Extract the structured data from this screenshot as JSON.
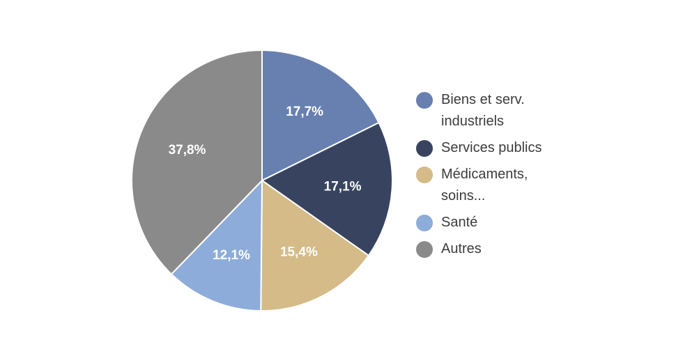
{
  "chart_data": {
    "type": "pie",
    "slices": [
      {
        "label": "Biens et serv. industriels",
        "value": 17.7,
        "display": "17,7%",
        "color": "#6880b0"
      },
      {
        "label": "Services publics",
        "value": 17.1,
        "display": "17,1%",
        "color": "#38445f"
      },
      {
        "label": "Médicaments, soins...",
        "value": 15.4,
        "display": "15,4%",
        "color": "#d4bb88"
      },
      {
        "label": "Santé",
        "value": 12.1,
        "display": "12,1%",
        "color": "#8eacd9"
      },
      {
        "label": "Autres",
        "value": 37.8,
        "display": "37,8%",
        "color": "#8a8a8a"
      }
    ],
    "start_angle": "12 o'clock",
    "direction": "clockwise",
    "legend_position": "right"
  }
}
